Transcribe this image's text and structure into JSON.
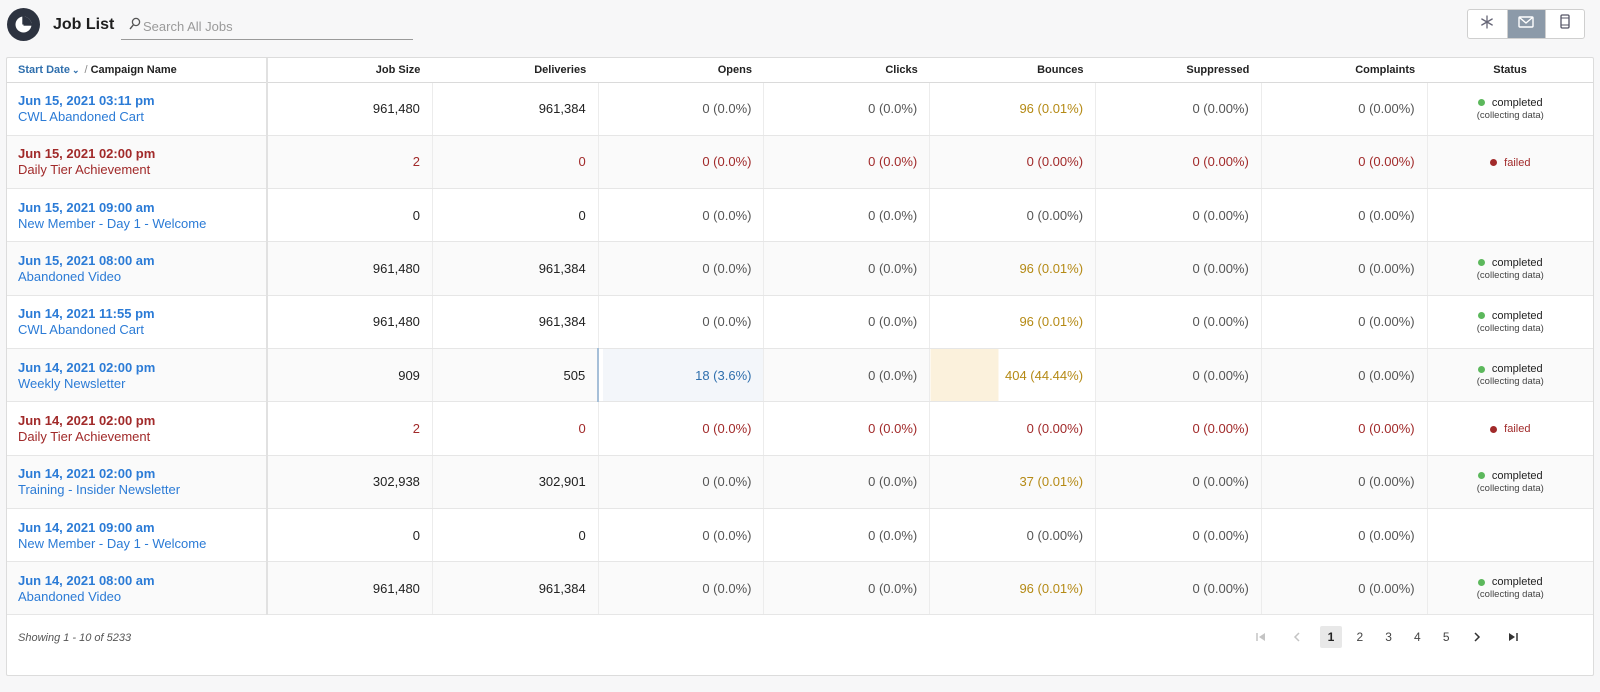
{
  "app": {
    "title": "Job List"
  },
  "search": {
    "placeholder": "Search All Jobs"
  },
  "view_toggle": {
    "icons": [
      "snowflake-icon",
      "mail-icon",
      "mobile-icon"
    ],
    "active": "mail-icon"
  },
  "colors": {
    "accent_blue": "#2b7bd6",
    "failed_red": "#a12a2a",
    "bounce_gold": "#b58a15",
    "completed_green": "#5cb85c"
  },
  "table": {
    "headers": {
      "start_date": "Start Date",
      "separator": "/",
      "campaign_name": "Campaign Name",
      "job_size": "Job Size",
      "deliveries": "Deliveries",
      "opens": "Opens",
      "clicks": "Clicks",
      "bounces": "Bounces",
      "suppressed": "Suppressed",
      "complaints": "Complaints",
      "status": "Status"
    },
    "rows": [
      {
        "date": "Jun 15, 2021 03:11 pm",
        "name": "CWL Abandoned Cart",
        "job_size": "961,480",
        "deliveries": "961,384",
        "opens": "0 (0.0%)",
        "clicks": "0 (0.0%)",
        "bounces": "96 (0.01%)",
        "suppressed": "0 (0.00%)",
        "complaints": "0 (0.00%)",
        "status": "completed",
        "status_sub": "(collecting data)"
      },
      {
        "date": "Jun 15, 2021 02:00 pm",
        "name": "Daily Tier Achievement",
        "job_size": "2",
        "deliveries": "0",
        "opens": "0 (0.0%)",
        "clicks": "0 (0.0%)",
        "bounces": "0 (0.00%)",
        "suppressed": "0 (0.00%)",
        "complaints": "0 (0.00%)",
        "status": "failed",
        "status_sub": ""
      },
      {
        "date": "Jun 15, 2021 09:00 am",
        "name": "New Member - Day 1 - Welcome",
        "job_size": "0",
        "deliveries": "0",
        "opens": "0 (0.0%)",
        "clicks": "0 (0.0%)",
        "bounces": "0 (0.00%)",
        "suppressed": "0 (0.00%)",
        "complaints": "0 (0.00%)",
        "status": "",
        "status_sub": ""
      },
      {
        "date": "Jun 15, 2021 08:00 am",
        "name": "Abandoned Video",
        "job_size": "961,480",
        "deliveries": "961,384",
        "opens": "0 (0.0%)",
        "clicks": "0 (0.0%)",
        "bounces": "96 (0.01%)",
        "suppressed": "0 (0.00%)",
        "complaints": "0 (0.00%)",
        "status": "completed",
        "status_sub": "(collecting data)"
      },
      {
        "date": "Jun 14, 2021 11:55 pm",
        "name": "CWL Abandoned Cart",
        "job_size": "961,480",
        "deliveries": "961,384",
        "opens": "0 (0.0%)",
        "clicks": "0 (0.0%)",
        "bounces": "96 (0.01%)",
        "suppressed": "0 (0.00%)",
        "complaints": "0 (0.00%)",
        "status": "completed",
        "status_sub": "(collecting data)"
      },
      {
        "date": "Jun 14, 2021 02:00 pm",
        "name": "Weekly Newsletter",
        "job_size": "909",
        "deliveries": "505",
        "opens": "18 (3.6%)",
        "clicks": "0 (0.0%)",
        "bounces": "404 (44.44%)",
        "suppressed": "0 (0.00%)",
        "complaints": "0 (0.00%)",
        "status": "completed",
        "status_sub": "(collecting data)"
      },
      {
        "date": "Jun 14, 2021 02:00 pm",
        "name": "Daily Tier Achievement",
        "job_size": "2",
        "deliveries": "0",
        "opens": "0 (0.0%)",
        "clicks": "0 (0.0%)",
        "bounces": "0 (0.00%)",
        "suppressed": "0 (0.00%)",
        "complaints": "0 (0.00%)",
        "status": "failed",
        "status_sub": ""
      },
      {
        "date": "Jun 14, 2021 02:00 pm",
        "name": "Training - Insider Newsletter",
        "job_size": "302,938",
        "deliveries": "302,901",
        "opens": "0 (0.0%)",
        "clicks": "0 (0.0%)",
        "bounces": "37 (0.01%)",
        "suppressed": "0 (0.00%)",
        "complaints": "0 (0.00%)",
        "status": "completed",
        "status_sub": "(collecting data)"
      },
      {
        "date": "Jun 14, 2021 09:00 am",
        "name": "New Member - Day 1 - Welcome",
        "job_size": "0",
        "deliveries": "0",
        "opens": "0 (0.0%)",
        "clicks": "0 (0.0%)",
        "bounces": "0 (0.00%)",
        "suppressed": "0 (0.00%)",
        "complaints": "0 (0.00%)",
        "status": "",
        "status_sub": ""
      },
      {
        "date": "Jun 14, 2021 08:00 am",
        "name": "Abandoned Video",
        "job_size": "961,480",
        "deliveries": "961,384",
        "opens": "0 (0.0%)",
        "clicks": "0 (0.0%)",
        "bounces": "96 (0.01%)",
        "suppressed": "0 (0.00%)",
        "complaints": "0 (0.00%)",
        "status": "completed",
        "status_sub": "(collecting data)"
      }
    ]
  },
  "footer": {
    "showing": "Showing 1 - 10 of 5233",
    "pages": [
      "1",
      "2",
      "3",
      "4",
      "5"
    ],
    "current_page": "1"
  }
}
